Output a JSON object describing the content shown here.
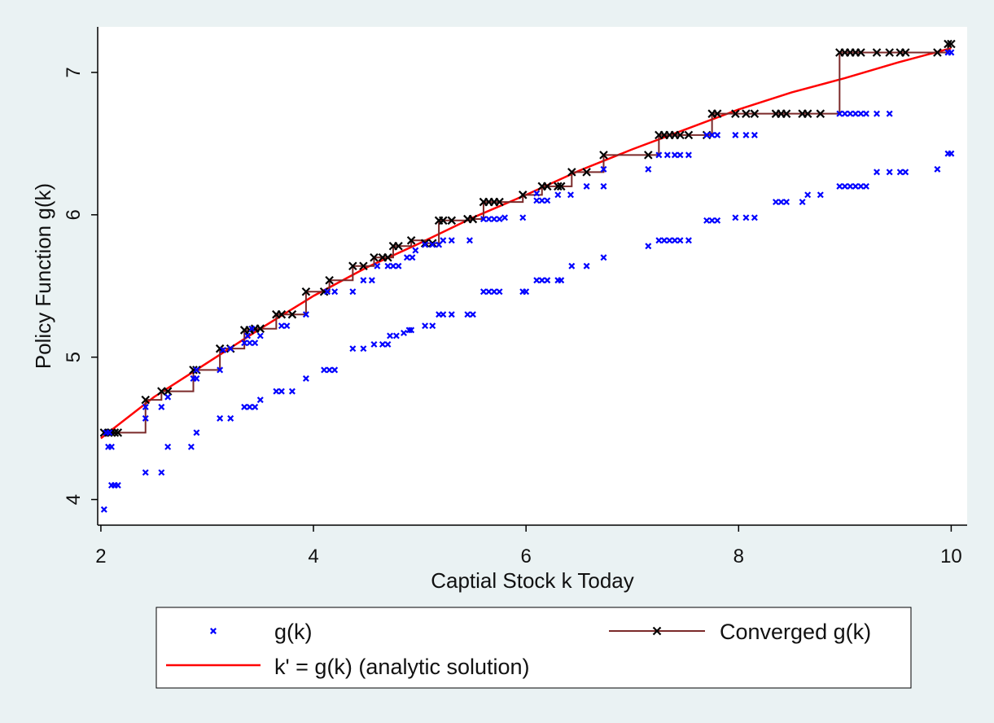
{
  "chart_data": {
    "type": "scatter",
    "xlabel": "Captial Stock k Today",
    "ylabel": "Policy Function g(k)",
    "xlim": [
      1.97,
      10.15
    ],
    "ylim": [
      3.82,
      7.32
    ],
    "xticks": [
      2,
      4,
      6,
      8,
      10
    ],
    "yticks": [
      4,
      5,
      6,
      7
    ],
    "grid": false,
    "legend_position": "bottom",
    "colors": {
      "background": "#eaf2f3",
      "plot_background": "#ffffff",
      "gk_marker": "#0000ff",
      "converged": "#7b2a2a",
      "converged_marker": "#000000",
      "analytic": "#ff0000"
    },
    "series": [
      {
        "name": "g(k)",
        "kind": "markers",
        "points": [
          [
            2.03,
            3.93
          ],
          [
            2.07,
            4.37
          ],
          [
            2.1,
            4.37
          ],
          [
            2.1,
            4.1
          ],
          [
            2.13,
            4.1
          ],
          [
            2.16,
            4.1
          ],
          [
            2.05,
            4.47
          ],
          [
            2.08,
            4.47
          ],
          [
            2.42,
            4.19
          ],
          [
            2.42,
            4.57
          ],
          [
            2.42,
            4.65
          ],
          [
            2.57,
            4.19
          ],
          [
            2.57,
            4.65
          ],
          [
            2.63,
            4.37
          ],
          [
            2.63,
            4.72
          ],
          [
            2.85,
            4.37
          ],
          [
            2.87,
            4.85
          ],
          [
            2.9,
            4.85
          ],
          [
            2.9,
            4.47
          ],
          [
            2.9,
            4.91
          ],
          [
            3.12,
            4.57
          ],
          [
            3.12,
            4.91
          ],
          [
            3.22,
            4.57
          ],
          [
            3.22,
            5.06
          ],
          [
            3.15,
            5.05
          ],
          [
            3.35,
            4.65
          ],
          [
            3.4,
            4.65
          ],
          [
            3.45,
            4.65
          ],
          [
            3.5,
            4.7
          ],
          [
            3.35,
            5.1
          ],
          [
            3.4,
            5.1
          ],
          [
            3.45,
            5.1
          ],
          [
            3.5,
            5.15
          ],
          [
            3.38,
            5.15
          ],
          [
            3.42,
            5.2
          ],
          [
            3.65,
            4.76
          ],
          [
            3.7,
            4.76
          ],
          [
            3.8,
            4.76
          ],
          [
            3.7,
            5.22
          ],
          [
            3.75,
            5.22
          ],
          [
            3.93,
            4.85
          ],
          [
            3.93,
            5.3
          ],
          [
            4.1,
            4.91
          ],
          [
            4.15,
            4.91
          ],
          [
            4.2,
            4.91
          ],
          [
            4.2,
            5.46
          ],
          [
            4.13,
            5.46
          ],
          [
            4.37,
            5.06
          ],
          [
            4.47,
            5.06
          ],
          [
            4.37,
            5.46
          ],
          [
            4.47,
            5.54
          ],
          [
            4.55,
            5.54
          ],
          [
            4.57,
            5.09
          ],
          [
            4.65,
            5.09
          ],
          [
            4.7,
            5.09
          ],
          [
            4.72,
            5.15
          ],
          [
            4.78,
            5.15
          ],
          [
            4.6,
            5.64
          ],
          [
            4.7,
            5.64
          ],
          [
            4.75,
            5.64
          ],
          [
            4.8,
            5.64
          ],
          [
            4.85,
            5.17
          ],
          [
            4.9,
            5.19
          ],
          [
            4.92,
            5.19
          ],
          [
            4.88,
            5.7
          ],
          [
            4.93,
            5.7
          ],
          [
            4.96,
            5.75
          ],
          [
            5.05,
            5.22
          ],
          [
            5.12,
            5.22
          ],
          [
            5.18,
            5.3
          ],
          [
            5.22,
            5.3
          ],
          [
            5.3,
            5.3
          ],
          [
            5.45,
            5.3
          ],
          [
            5.5,
            5.3
          ],
          [
            5.05,
            5.79
          ],
          [
            5.12,
            5.79
          ],
          [
            5.18,
            5.79
          ],
          [
            5.22,
            5.82
          ],
          [
            5.3,
            5.82
          ],
          [
            5.47,
            5.82
          ],
          [
            5.6,
            5.46
          ],
          [
            5.65,
            5.46
          ],
          [
            5.7,
            5.46
          ],
          [
            5.75,
            5.46
          ],
          [
            5.97,
            5.46
          ],
          [
            6.0,
            5.46
          ],
          [
            5.6,
            5.97
          ],
          [
            5.65,
            5.97
          ],
          [
            5.7,
            5.97
          ],
          [
            5.75,
            5.97
          ],
          [
            5.8,
            5.98
          ],
          [
            5.97,
            5.98
          ],
          [
            6.1,
            5.54
          ],
          [
            6.15,
            5.54
          ],
          [
            6.2,
            5.54
          ],
          [
            6.3,
            5.54
          ],
          [
            6.33,
            5.54
          ],
          [
            6.1,
            6.1
          ],
          [
            6.15,
            6.1
          ],
          [
            6.2,
            6.1
          ],
          [
            6.1,
            6.15
          ],
          [
            6.3,
            6.14
          ],
          [
            6.42,
            6.14
          ],
          [
            6.43,
            5.64
          ],
          [
            6.57,
            5.64
          ],
          [
            6.73,
            5.7
          ],
          [
            6.57,
            6.2
          ],
          [
            6.73,
            6.2
          ],
          [
            6.73,
            6.32
          ],
          [
            7.15,
            5.78
          ],
          [
            7.25,
            5.82
          ],
          [
            7.3,
            5.82
          ],
          [
            7.35,
            5.82
          ],
          [
            7.4,
            5.82
          ],
          [
            7.45,
            5.82
          ],
          [
            7.53,
            5.82
          ],
          [
            7.15,
            6.32
          ],
          [
            7.25,
            6.42
          ],
          [
            7.33,
            6.42
          ],
          [
            7.4,
            6.42
          ],
          [
            7.45,
            6.42
          ],
          [
            7.53,
            6.42
          ],
          [
            7.7,
            5.96
          ],
          [
            7.75,
            5.96
          ],
          [
            7.8,
            5.96
          ],
          [
            7.97,
            5.98
          ],
          [
            8.07,
            5.98
          ],
          [
            8.15,
            5.98
          ],
          [
            7.7,
            6.56
          ],
          [
            7.75,
            6.56
          ],
          [
            7.8,
            6.56
          ],
          [
            7.97,
            6.56
          ],
          [
            8.07,
            6.56
          ],
          [
            8.15,
            6.56
          ],
          [
            8.35,
            6.09
          ],
          [
            8.4,
            6.09
          ],
          [
            8.45,
            6.09
          ],
          [
            8.6,
            6.09
          ],
          [
            8.65,
            6.14
          ],
          [
            8.77,
            6.14
          ],
          [
            8.95,
            6.2
          ],
          [
            9.0,
            6.2
          ],
          [
            9.05,
            6.2
          ],
          [
            9.1,
            6.2
          ],
          [
            9.15,
            6.2
          ],
          [
            9.2,
            6.2
          ],
          [
            8.95,
            6.71
          ],
          [
            9.0,
            6.71
          ],
          [
            9.05,
            6.71
          ],
          [
            9.1,
            6.71
          ],
          [
            9.15,
            6.71
          ],
          [
            9.2,
            6.71
          ],
          [
            9.3,
            6.71
          ],
          [
            9.42,
            6.71
          ],
          [
            9.3,
            6.3
          ],
          [
            9.42,
            6.3
          ],
          [
            9.52,
            6.3
          ],
          [
            9.57,
            6.3
          ],
          [
            9.87,
            6.32
          ],
          [
            9.97,
            6.43
          ],
          [
            10.0,
            6.43
          ],
          [
            9.97,
            7.14
          ],
          [
            10.0,
            7.14
          ]
        ]
      },
      {
        "name": "Converged g(k)",
        "kind": "line-markers",
        "points": [
          [
            2.03,
            4.47
          ],
          [
            2.07,
            4.47
          ],
          [
            2.1,
            4.47
          ],
          [
            2.13,
            4.47
          ],
          [
            2.16,
            4.47
          ],
          [
            2.42,
            4.7
          ],
          [
            2.57,
            4.76
          ],
          [
            2.63,
            4.76
          ],
          [
            2.87,
            4.91
          ],
          [
            2.9,
            4.91
          ],
          [
            3.12,
            5.06
          ],
          [
            3.22,
            5.06
          ],
          [
            3.35,
            5.19
          ],
          [
            3.4,
            5.19
          ],
          [
            3.45,
            5.2
          ],
          [
            3.5,
            5.2
          ],
          [
            3.65,
            5.3
          ],
          [
            3.7,
            5.3
          ],
          [
            3.8,
            5.3
          ],
          [
            3.93,
            5.46
          ],
          [
            4.1,
            5.46
          ],
          [
            4.15,
            5.54
          ],
          [
            4.37,
            5.64
          ],
          [
            4.47,
            5.64
          ],
          [
            4.57,
            5.7
          ],
          [
            4.65,
            5.7
          ],
          [
            4.7,
            5.7
          ],
          [
            4.75,
            5.78
          ],
          [
            4.8,
            5.78
          ],
          [
            4.92,
            5.82
          ],
          [
            5.05,
            5.8
          ],
          [
            5.12,
            5.8
          ],
          [
            5.18,
            5.96
          ],
          [
            5.22,
            5.96
          ],
          [
            5.3,
            5.96
          ],
          [
            5.45,
            5.97
          ],
          [
            5.5,
            5.97
          ],
          [
            5.6,
            6.09
          ],
          [
            5.65,
            6.09
          ],
          [
            5.7,
            6.09
          ],
          [
            5.75,
            6.09
          ],
          [
            5.97,
            6.14
          ],
          [
            6.15,
            6.2
          ],
          [
            6.2,
            6.2
          ],
          [
            6.3,
            6.2
          ],
          [
            6.33,
            6.2
          ],
          [
            6.43,
            6.3
          ],
          [
            6.57,
            6.3
          ],
          [
            6.73,
            6.42
          ],
          [
            7.15,
            6.42
          ],
          [
            7.25,
            6.56
          ],
          [
            7.3,
            6.56
          ],
          [
            7.35,
            6.56
          ],
          [
            7.4,
            6.56
          ],
          [
            7.45,
            6.56
          ],
          [
            7.53,
            6.56
          ],
          [
            7.7,
            6.56
          ],
          [
            7.75,
            6.71
          ],
          [
            7.8,
            6.71
          ],
          [
            7.97,
            6.71
          ],
          [
            8.07,
            6.71
          ],
          [
            8.15,
            6.71
          ],
          [
            8.35,
            6.71
          ],
          [
            8.4,
            6.71
          ],
          [
            8.45,
            6.71
          ],
          [
            8.6,
            6.71
          ],
          [
            8.65,
            6.71
          ],
          [
            8.77,
            6.71
          ],
          [
            8.95,
            7.14
          ],
          [
            9.0,
            7.14
          ],
          [
            9.05,
            7.14
          ],
          [
            9.1,
            7.14
          ],
          [
            9.15,
            7.14
          ],
          [
            9.3,
            7.14
          ],
          [
            9.42,
            7.14
          ],
          [
            9.52,
            7.14
          ],
          [
            9.57,
            7.14
          ],
          [
            9.87,
            7.14
          ],
          [
            9.97,
            7.2
          ],
          [
            10.0,
            7.2
          ]
        ]
      },
      {
        "name": "k' = g(k) (analytic solution)",
        "kind": "line",
        "points": [
          [
            2.0,
            4.43
          ],
          [
            2.5,
            4.72
          ],
          [
            3.0,
            4.96
          ],
          [
            3.5,
            5.2
          ],
          [
            4.0,
            5.43
          ],
          [
            4.5,
            5.63
          ],
          [
            5.0,
            5.8
          ],
          [
            5.5,
            5.98
          ],
          [
            6.0,
            6.14
          ],
          [
            6.5,
            6.31
          ],
          [
            7.0,
            6.46
          ],
          [
            7.5,
            6.6
          ],
          [
            8.0,
            6.74
          ],
          [
            8.5,
            6.86
          ],
          [
            9.0,
            6.96
          ],
          [
            9.5,
            7.07
          ],
          [
            10.0,
            7.17
          ]
        ]
      }
    ],
    "legend": [
      {
        "label": "g(k)",
        "style": "gk"
      },
      {
        "label": "Converged g(k)",
        "style": "converged"
      },
      {
        "label": "k' = g(k) (analytic solution)",
        "style": "analytic"
      }
    ]
  }
}
